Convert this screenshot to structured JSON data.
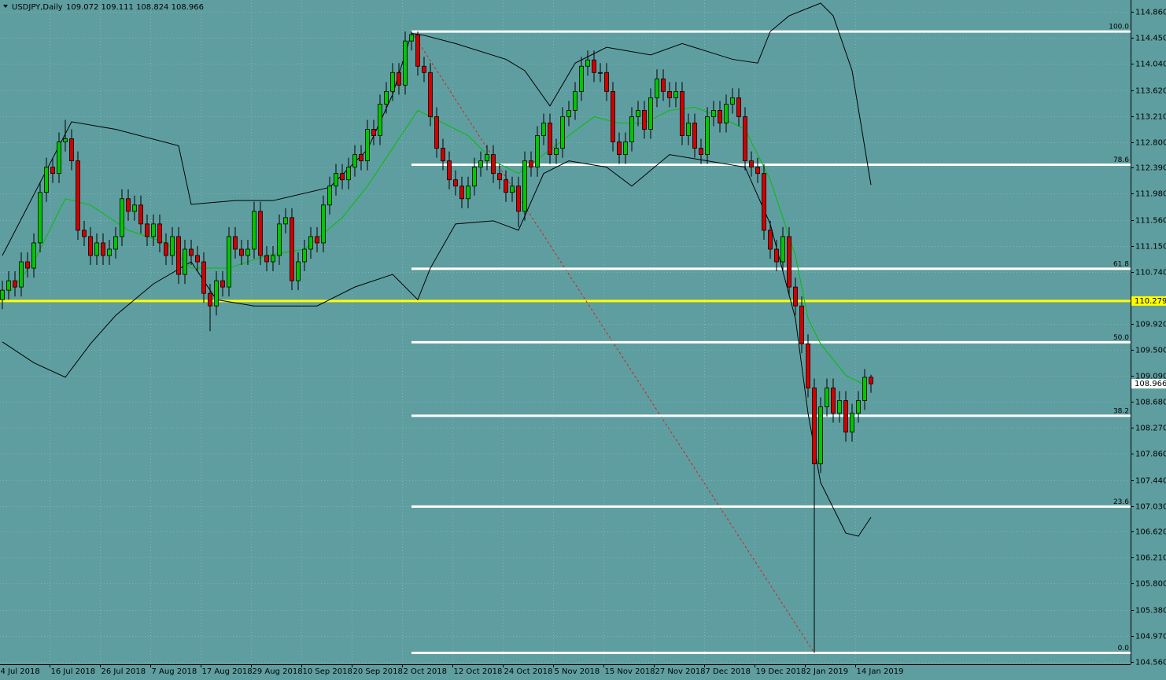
{
  "chart_data": {
    "type": "candlestick",
    "title": "USDJPY,Daily",
    "ohlc_text": "109.072 109.111 108.824 108.966",
    "categories": [
      "4 Jul 2018",
      null,
      null,
      null,
      null,
      null,
      null,
      null,
      "16 Jul 2018",
      null,
      null,
      null,
      null,
      null,
      null,
      null,
      "26 Jul 2018",
      null,
      null,
      null,
      null,
      null,
      null,
      null,
      "7 Aug 2018",
      null,
      null,
      null,
      null,
      null,
      null,
      null,
      "17 Aug 2018",
      null,
      null,
      null,
      null,
      null,
      null,
      null,
      "29 Aug 2018",
      null,
      null,
      null,
      null,
      null,
      null,
      null,
      "10 Sep 2018",
      null,
      null,
      null,
      null,
      null,
      null,
      null,
      "20 Sep 2018",
      null,
      null,
      null,
      null,
      null,
      null,
      null,
      "2 Oct 2018",
      null,
      null,
      null,
      null,
      null,
      null,
      null,
      "12 Oct 2018",
      null,
      null,
      null,
      null,
      null,
      null,
      null,
      "24 Oct 2018",
      null,
      null,
      null,
      null,
      null,
      null,
      null,
      "5 Nov 2018",
      null,
      null,
      null,
      null,
      null,
      null,
      null,
      "15 Nov 2018",
      null,
      null,
      null,
      null,
      null,
      null,
      null,
      "27 Nov 2018",
      null,
      null,
      null,
      null,
      null,
      null,
      null,
      "7 Dec 2018",
      null,
      null,
      null,
      null,
      null,
      null,
      null,
      "19 Dec 2018",
      null,
      null,
      null,
      null,
      null,
      null,
      null,
      "2 Jan 2019",
      null,
      null,
      null,
      null,
      null,
      null,
      null,
      "14 Jan 2019",
      null,
      null
    ],
    "candles": [
      [
        110.3,
        110.6,
        110.15,
        110.45
      ],
      [
        110.45,
        110.75,
        110.3,
        110.6
      ],
      [
        110.6,
        110.75,
        110.35,
        110.5
      ],
      [
        110.5,
        111.05,
        110.35,
        110.9
      ],
      [
        110.9,
        111.05,
        110.65,
        110.8
      ],
      [
        110.8,
        111.35,
        110.65,
        111.2
      ],
      [
        111.2,
        112.15,
        111.05,
        112.0
      ],
      [
        112.0,
        112.55,
        111.85,
        112.4
      ],
      [
        112.4,
        112.55,
        112.15,
        112.3
      ],
      [
        112.3,
        112.95,
        112.15,
        112.8
      ],
      [
        112.8,
        113.15,
        112.65,
        112.85
      ],
      [
        112.85,
        113.0,
        112.35,
        112.5
      ],
      [
        112.5,
        112.65,
        111.25,
        111.4
      ],
      [
        111.4,
        111.55,
        111.15,
        111.3
      ],
      [
        111.3,
        111.45,
        110.85,
        111.0
      ],
      [
        111.0,
        111.35,
        110.85,
        111.2
      ],
      [
        111.2,
        111.35,
        110.85,
        111.0
      ],
      [
        111.0,
        111.25,
        110.85,
        111.1
      ],
      [
        111.1,
        111.45,
        110.95,
        111.3
      ],
      [
        111.3,
        112.05,
        111.15,
        111.9
      ],
      [
        111.9,
        112.05,
        111.55,
        111.7
      ],
      [
        111.7,
        111.95,
        111.55,
        111.8
      ],
      [
        111.8,
        111.95,
        111.35,
        111.5
      ],
      [
        111.5,
        111.65,
        111.15,
        111.3
      ],
      [
        111.3,
        111.65,
        111.15,
        111.5
      ],
      [
        111.5,
        111.65,
        111.05,
        111.2
      ],
      [
        111.2,
        111.35,
        110.85,
        111.0
      ],
      [
        111.0,
        111.45,
        110.85,
        111.3
      ],
      [
        111.3,
        111.45,
        110.55,
        110.7
      ],
      [
        110.7,
        111.25,
        110.55,
        111.1
      ],
      [
        111.1,
        111.25,
        110.85,
        111.0
      ],
      [
        111.0,
        111.15,
        110.75,
        110.9
      ],
      [
        110.9,
        111.05,
        110.25,
        110.4
      ],
      [
        110.4,
        110.55,
        109.8,
        110.2
      ],
      [
        110.2,
        110.75,
        110.05,
        110.6
      ],
      [
        110.6,
        110.75,
        110.35,
        110.5
      ],
      [
        110.5,
        111.45,
        110.35,
        111.3
      ],
      [
        111.3,
        111.45,
        110.95,
        111.1
      ],
      [
        111.1,
        111.25,
        110.85,
        111.0
      ],
      [
        111.0,
        111.25,
        110.85,
        111.1
      ],
      [
        111.1,
        111.85,
        110.95,
        111.7
      ],
      [
        111.7,
        111.85,
        110.85,
        111.0
      ],
      [
        111.0,
        111.15,
        110.75,
        110.9
      ],
      [
        110.9,
        111.15,
        110.75,
        111.0
      ],
      [
        111.0,
        111.65,
        110.85,
        111.5
      ],
      [
        111.5,
        111.75,
        111.35,
        111.6
      ],
      [
        111.6,
        111.75,
        110.45,
        110.6
      ],
      [
        110.6,
        111.05,
        110.45,
        110.9
      ],
      [
        110.9,
        111.25,
        110.75,
        111.1
      ],
      [
        111.1,
        111.45,
        110.95,
        111.3
      ],
      [
        111.3,
        111.45,
        111.05,
        111.2
      ],
      [
        111.2,
        111.95,
        111.05,
        111.8
      ],
      [
        111.8,
        112.25,
        111.65,
        112.1
      ],
      [
        112.1,
        112.45,
        111.95,
        112.3
      ],
      [
        112.3,
        112.45,
        112.05,
        112.2
      ],
      [
        112.2,
        112.55,
        112.05,
        112.4
      ],
      [
        112.4,
        112.75,
        112.25,
        112.6
      ],
      [
        112.6,
        112.75,
        112.35,
        112.5
      ],
      [
        112.5,
        113.15,
        112.35,
        113.0
      ],
      [
        113.0,
        113.15,
        112.75,
        112.9
      ],
      [
        112.9,
        113.55,
        112.75,
        113.4
      ],
      [
        113.4,
        113.75,
        113.25,
        113.6
      ],
      [
        113.6,
        114.05,
        113.45,
        113.9
      ],
      [
        113.9,
        114.05,
        113.55,
        113.7
      ],
      [
        113.7,
        114.55,
        113.55,
        114.4
      ],
      [
        114.4,
        114.55,
        114.25,
        114.5
      ],
      [
        114.5,
        114.55,
        113.85,
        114.0
      ],
      [
        114.0,
        114.15,
        113.75,
        113.9
      ],
      [
        113.9,
        114.05,
        113.05,
        113.2
      ],
      [
        113.2,
        113.35,
        112.55,
        112.7
      ],
      [
        112.7,
        112.85,
        112.35,
        112.5
      ],
      [
        112.5,
        112.65,
        112.05,
        112.2
      ],
      [
        112.2,
        112.35,
        111.95,
        112.1
      ],
      [
        112.1,
        112.25,
        111.75,
        111.9
      ],
      [
        111.9,
        112.25,
        111.75,
        112.1
      ],
      [
        112.1,
        112.55,
        111.95,
        112.4
      ],
      [
        112.4,
        112.65,
        112.25,
        112.5
      ],
      [
        112.5,
        112.75,
        112.35,
        112.6
      ],
      [
        112.6,
        112.75,
        112.15,
        112.3
      ],
      [
        112.3,
        112.45,
        112.05,
        112.2
      ],
      [
        112.2,
        112.35,
        111.85,
        112.0
      ],
      [
        112.0,
        112.25,
        111.85,
        112.1
      ],
      [
        112.1,
        112.25,
        111.45,
        111.7
      ],
      [
        111.7,
        112.65,
        111.55,
        112.5
      ],
      [
        112.5,
        112.65,
        112.25,
        112.4
      ],
      [
        112.4,
        113.05,
        112.25,
        112.9
      ],
      [
        112.9,
        113.25,
        112.75,
        113.1
      ],
      [
        113.1,
        113.25,
        112.45,
        112.6
      ],
      [
        112.6,
        112.85,
        112.45,
        112.7
      ],
      [
        112.7,
        113.35,
        112.55,
        113.2
      ],
      [
        113.2,
        113.45,
        113.05,
        113.3
      ],
      [
        113.3,
        113.75,
        113.15,
        113.6
      ],
      [
        113.6,
        114.15,
        113.45,
        114.0
      ],
      [
        114.0,
        114.25,
        113.85,
        114.1
      ],
      [
        114.1,
        114.25,
        113.75,
        113.9
      ],
      [
        113.9,
        114.05,
        113.75,
        113.9
      ],
      [
        113.9,
        114.05,
        113.45,
        113.6
      ],
      [
        113.6,
        113.75,
        112.65,
        112.8
      ],
      [
        112.8,
        112.95,
        112.45,
        112.6
      ],
      [
        112.6,
        112.95,
        112.45,
        112.8
      ],
      [
        112.8,
        113.35,
        112.65,
        113.2
      ],
      [
        113.2,
        113.45,
        113.05,
        113.3
      ],
      [
        113.3,
        113.45,
        112.85,
        113.0
      ],
      [
        113.0,
        113.65,
        112.85,
        113.5
      ],
      [
        113.5,
        113.95,
        113.35,
        113.8
      ],
      [
        113.8,
        113.95,
        113.45,
        113.6
      ],
      [
        113.6,
        113.75,
        113.35,
        113.5
      ],
      [
        113.5,
        113.75,
        113.35,
        113.6
      ],
      [
        113.6,
        113.75,
        112.75,
        112.9
      ],
      [
        112.9,
        113.25,
        112.75,
        113.1
      ],
      [
        113.1,
        113.25,
        112.55,
        112.7
      ],
      [
        112.7,
        112.85,
        112.45,
        112.6
      ],
      [
        112.6,
        113.35,
        112.45,
        113.2
      ],
      [
        113.2,
        113.45,
        113.05,
        113.3
      ],
      [
        113.3,
        113.45,
        112.95,
        113.1
      ],
      [
        113.1,
        113.55,
        112.95,
        113.4
      ],
      [
        113.4,
        113.65,
        113.25,
        113.5
      ],
      [
        113.5,
        113.65,
        113.05,
        113.2
      ],
      [
        113.2,
        113.35,
        112.35,
        112.5
      ],
      [
        112.5,
        112.65,
        112.25,
        112.4
      ],
      [
        112.4,
        112.55,
        112.15,
        112.3
      ],
      [
        112.3,
        112.45,
        111.25,
        111.4
      ],
      [
        111.4,
        111.55,
        110.95,
        111.1
      ],
      [
        111.1,
        111.25,
        110.75,
        110.9
      ],
      [
        110.9,
        111.45,
        110.75,
        111.3
      ],
      [
        111.3,
        111.45,
        110.35,
        110.5
      ],
      [
        110.5,
        110.65,
        110.05,
        110.2
      ],
      [
        110.2,
        110.35,
        109.45,
        109.6
      ],
      [
        109.6,
        109.75,
        108.75,
        108.9
      ],
      [
        108.9,
        109.05,
        104.7,
        107.7
      ],
      [
        107.7,
        108.75,
        107.55,
        108.6
      ],
      [
        108.6,
        109.05,
        108.45,
        108.9
      ],
      [
        108.9,
        109.05,
        108.35,
        108.5
      ],
      [
        108.5,
        108.85,
        108.35,
        108.7
      ],
      [
        108.7,
        108.85,
        108.05,
        108.2
      ],
      [
        108.2,
        108.65,
        108.05,
        108.5
      ],
      [
        108.5,
        108.85,
        108.35,
        108.7
      ],
      [
        108.7,
        109.2,
        108.55,
        109.07
      ],
      [
        109.072,
        109.111,
        108.824,
        108.966
      ]
    ],
    "up_color": "#00c800",
    "down_color": "#d40000",
    "lines": [
      {
        "color": "#000000",
        "x": [
          0,
          11,
          18,
          28,
          30,
          37,
          43,
          52,
          58,
          62,
          65,
          67,
          72,
          80,
          83,
          87,
          91,
          96,
          103,
          108,
          116,
          120,
          122,
          125,
          130,
          132,
          135,
          138
        ],
        "values": [
          111.0,
          113.12,
          113.0,
          112.74,
          111.81,
          111.87,
          111.87,
          112.08,
          112.68,
          113.55,
          114.52,
          114.49,
          114.36,
          114.11,
          113.93,
          113.37,
          114.05,
          114.3,
          114.18,
          114.36,
          114.11,
          114.05,
          114.55,
          114.8,
          115.0,
          114.8,
          113.93,
          112.12
        ]
      },
      {
        "color": "#000000",
        "x": [
          0,
          5,
          10,
          14,
          18,
          24,
          30,
          34,
          40,
          50,
          56,
          62,
          66,
          68,
          72,
          78,
          82,
          86,
          90,
          96,
          100,
          106,
          112,
          118,
          122,
          126,
          128,
          130,
          134,
          136,
          138
        ],
        "values": [
          109.63,
          109.3,
          109.07,
          109.6,
          110.05,
          110.55,
          110.9,
          110.3,
          110.2,
          110.2,
          110.5,
          110.7,
          110.3,
          110.8,
          111.5,
          111.55,
          111.4,
          112.3,
          112.5,
          112.4,
          112.1,
          112.6,
          112.5,
          112.4,
          111.5,
          110.0,
          108.5,
          107.4,
          106.6,
          106.55,
          106.85
        ]
      },
      {
        "color": "#00c000",
        "x": [
          1,
          5,
          10,
          14,
          20,
          26,
          30,
          36,
          42,
          48,
          54,
          58,
          62,
          64,
          66,
          70,
          74,
          78,
          82,
          86,
          90,
          94,
          98,
          102,
          106,
          110,
          114,
          118,
          122,
          126,
          128,
          130,
          134,
          137
        ],
        "values": [
          110.4,
          110.9,
          111.9,
          111.8,
          111.4,
          111.2,
          110.8,
          110.8,
          111.0,
          111.1,
          111.6,
          112.1,
          112.7,
          113.0,
          113.3,
          113.1,
          112.9,
          112.5,
          112.3,
          112.6,
          112.9,
          113.2,
          113.1,
          113.1,
          113.3,
          113.35,
          113.2,
          113.0,
          112.2,
          111.0,
          110.0,
          109.6,
          109.1,
          108.95
        ]
      }
    ],
    "hline": {
      "value": 110.279,
      "color": "#ffff00"
    },
    "fib": {
      "anchor_from": {
        "index": 65,
        "value": 114.55
      },
      "anchor_to": {
        "index": 129,
        "value": 104.7
      },
      "levels": [
        {
          "label": "100.0",
          "value": 114.55
        },
        {
          "label": "78.6",
          "value": 112.44
        },
        {
          "label": "61.8",
          "value": 110.79
        },
        {
          "label": "50.0",
          "value": 109.625
        },
        {
          "label": "38.2",
          "value": 108.46
        },
        {
          "label": "23.6",
          "value": 107.02
        },
        {
          "label": "0.0",
          "value": 104.7
        }
      ]
    },
    "ylim": [
      104.52,
      115.05
    ],
    "yticks": [
      {
        "value": 114.86,
        "label": "114.860"
      },
      {
        "value": 114.45,
        "label": "114.450"
      },
      {
        "value": 114.04,
        "label": "114.040"
      },
      {
        "value": 113.62,
        "label": "113.620"
      },
      {
        "value": 113.21,
        "label": "113.210"
      },
      {
        "value": 112.8,
        "label": "112.800"
      },
      {
        "value": 112.39,
        "label": "112.390"
      },
      {
        "value": 111.98,
        "label": "111.980"
      },
      {
        "value": 111.56,
        "label": "111.560"
      },
      {
        "value": 111.15,
        "label": "111.150"
      },
      {
        "value": 110.74,
        "label": "110.740"
      },
      {
        "value": 109.92,
        "label": "109.920"
      },
      {
        "value": 109.5,
        "label": "109.500"
      },
      {
        "value": 109.09,
        "label": "109.090"
      },
      {
        "value": 108.68,
        "label": "108.680"
      },
      {
        "value": 108.27,
        "label": "108.270"
      },
      {
        "value": 107.86,
        "label": "107.860"
      },
      {
        "value": 107.44,
        "label": "107.440"
      },
      {
        "value": 107.03,
        "label": "107.030"
      },
      {
        "value": 106.62,
        "label": "106.620"
      },
      {
        "value": 106.21,
        "label": "106.210"
      },
      {
        "value": 105.8,
        "label": "105.800"
      },
      {
        "value": 105.38,
        "label": "105.380"
      },
      {
        "value": 104.97,
        "label": "104.970"
      },
      {
        "value": 104.56,
        "label": "104.560"
      }
    ],
    "grid": true
  }
}
